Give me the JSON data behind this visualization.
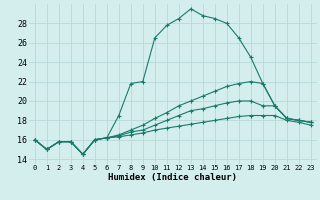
{
  "xlabel": "Humidex (Indice chaleur)",
  "bg_color": "#d4eeee",
  "grid_color": "#b8d8d8",
  "line_color": "#1a7a6a",
  "x_ticks": [
    0,
    1,
    2,
    3,
    4,
    5,
    6,
    7,
    8,
    9,
    10,
    11,
    12,
    13,
    14,
    15,
    16,
    17,
    18,
    19,
    20,
    21,
    22,
    23
  ],
  "y_ticks": [
    14,
    16,
    18,
    20,
    22,
    24,
    26,
    28
  ],
  "ylim": [
    13.5,
    30.0
  ],
  "xlim": [
    -0.5,
    23.5
  ],
  "series": [
    [
      16.0,
      15.0,
      15.8,
      15.8,
      14.5,
      16.0,
      16.2,
      18.5,
      21.8,
      22.0,
      26.5,
      27.8,
      28.5,
      29.5,
      28.8,
      28.5,
      28.0,
      26.5,
      24.5,
      21.8,
      19.5,
      18.2,
      18.0,
      17.8
    ],
    [
      16.0,
      15.0,
      15.8,
      15.8,
      14.5,
      16.0,
      16.2,
      16.5,
      17.0,
      17.5,
      18.2,
      18.8,
      19.5,
      20.0,
      20.5,
      21.0,
      21.5,
      21.8,
      22.0,
      21.8,
      19.5,
      18.2,
      18.0,
      17.8
    ],
    [
      16.0,
      15.0,
      15.8,
      15.8,
      14.5,
      16.0,
      16.2,
      16.4,
      16.8,
      17.0,
      17.5,
      18.0,
      18.5,
      19.0,
      19.2,
      19.5,
      19.8,
      20.0,
      20.0,
      19.5,
      19.5,
      18.2,
      18.0,
      17.8
    ],
    [
      16.0,
      15.0,
      15.8,
      15.8,
      14.5,
      16.0,
      16.2,
      16.3,
      16.5,
      16.7,
      17.0,
      17.2,
      17.4,
      17.6,
      17.8,
      18.0,
      18.2,
      18.4,
      18.5,
      18.5,
      18.5,
      18.0,
      17.8,
      17.5
    ]
  ]
}
